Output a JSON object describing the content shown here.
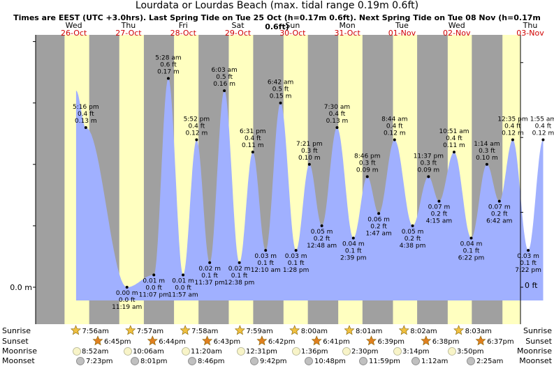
{
  "header": {
    "title": "Lourdata or Lourdas Beach (max. tidal range 0.19m 0.6ft)",
    "subtitle": "Times are EEST (UTC +3.0hrs). Last Spring Tide on Tue 25 Oct (h=0.17m 0.6ft). Next Spring Tide on Tue 08 Nov (h=0.17m 0.6ft)"
  },
  "colors": {
    "day": "#ffffc0",
    "night": "#a0a0a0",
    "tide_fill": "#a0b0ff",
    "date_text": "#d00000"
  },
  "chart_data": {
    "type": "area",
    "y_axis": {
      "left_label": "0.0 m",
      "right_label": "0 ft"
    },
    "days": [
      {
        "dow": "Wed",
        "date": "26-Oct"
      },
      {
        "dow": "Thu",
        "date": "27-Oct"
      },
      {
        "dow": "Fri",
        "date": "28-Oct"
      },
      {
        "dow": "Sat",
        "date": "29-Oct"
      },
      {
        "dow": "Sun",
        "date": "30-Oct"
      },
      {
        "dow": "Mon",
        "date": "31-Oct"
      },
      {
        "dow": "Tue",
        "date": "01-Nov"
      },
      {
        "dow": "Wed",
        "date": "02-Nov"
      },
      {
        "dow": "Thu",
        "date": "03-Nov"
      }
    ],
    "tides": [
      {
        "type": "high",
        "time": "5:16 pm",
        "ft": "0.4 ft",
        "m": "0.13 m"
      },
      {
        "type": "low",
        "time": "11:19 am",
        "ft": "0.0 ft",
        "m": "0.00 m"
      },
      {
        "type": "low",
        "time": "11:07 pm",
        "ft": "0.0 ft",
        "m": "0.01 m"
      },
      {
        "type": "high",
        "time": "5:28 am",
        "ft": "0.6 ft",
        "m": "0.17 m"
      },
      {
        "type": "low",
        "time": "11:57 am",
        "ft": "0.0 ft",
        "m": "0.01 m"
      },
      {
        "type": "high",
        "time": "5:52 pm",
        "ft": "0.4 ft",
        "m": "0.12 m"
      },
      {
        "type": "low",
        "time": "11:37 pm",
        "ft": "0.1 ft",
        "m": "0.02 m"
      },
      {
        "type": "high",
        "time": "6:03 am",
        "ft": "0.5 ft",
        "m": "0.16 m"
      },
      {
        "type": "low",
        "time": "12:38 pm",
        "ft": "0.1 ft",
        "m": "0.02 m"
      },
      {
        "type": "high",
        "time": "6:31 pm",
        "ft": "0.4 ft",
        "m": "0.11 m"
      },
      {
        "type": "low",
        "time": "12:10 am",
        "ft": "0.1 ft",
        "m": "0.03 m"
      },
      {
        "type": "high",
        "time": "6:42 am",
        "ft": "0.5 ft",
        "m": "0.15 m"
      },
      {
        "type": "low",
        "time": "1:28 pm",
        "ft": "0.1 ft",
        "m": "0.03 m"
      },
      {
        "type": "high",
        "time": "7:21 pm",
        "ft": "0.3 ft",
        "m": "0.10 m"
      },
      {
        "type": "low",
        "time": "12:48 am",
        "ft": "0.2 ft",
        "m": "0.05 m"
      },
      {
        "type": "high",
        "time": "7:30 am",
        "ft": "0.4 ft",
        "m": "0.13 m"
      },
      {
        "type": "low",
        "time": "2:39 pm",
        "ft": "0.1 ft",
        "m": "0.04 m"
      },
      {
        "type": "high",
        "time": "8:46 pm",
        "ft": "0.3 ft",
        "m": "0.09 m"
      },
      {
        "type": "low",
        "time": "1:47 am",
        "ft": "0.2 ft",
        "m": "0.06 m"
      },
      {
        "type": "high",
        "time": "8:44 am",
        "ft": "0.4 ft",
        "m": "0.12 m"
      },
      {
        "type": "low",
        "time": "4:38 pm",
        "ft": "0.2 ft",
        "m": "0.05 m"
      },
      {
        "type": "high",
        "time": "11:37 pm",
        "ft": "0.3 ft",
        "m": "0.09 m"
      },
      {
        "type": "low",
        "time": "4:15 am",
        "ft": "0.2 ft",
        "m": "0.07 m"
      },
      {
        "type": "high",
        "time": "10:51 am",
        "ft": "0.4 ft",
        "m": "0.11 m"
      },
      {
        "type": "low",
        "time": "6:22 pm",
        "ft": "0.1 ft",
        "m": "0.04 m"
      },
      {
        "type": "high",
        "time": "1:14 am",
        "ft": "0.3 ft",
        "m": "0.10 m"
      },
      {
        "type": "low",
        "time": "6:42 am",
        "ft": "0.2 ft",
        "m": "0.07 m"
      },
      {
        "type": "high",
        "time": "12:35 pm",
        "ft": "0.4 ft",
        "m": "0.12 m"
      },
      {
        "type": "low",
        "time": "7:22 pm",
        "ft": "0.1 ft",
        "m": "0.03 m"
      },
      {
        "type": "high",
        "time": "1:55 am",
        "ft": "0.4 ft",
        "m": "0.12 m"
      }
    ],
    "row_labels": {
      "sunrise": "Sunrise",
      "sunset": "Sunset",
      "moonrise": "Moonrise",
      "moonset": "Moonset"
    },
    "sunrise": [
      "7:56am",
      "7:57am",
      "7:58am",
      "7:59am",
      "8:00am",
      "8:01am",
      "8:02am",
      "8:03am"
    ],
    "sunset": [
      "6:45pm",
      "6:44pm",
      "6:43pm",
      "6:42pm",
      "6:41pm",
      "6:39pm",
      "6:38pm",
      "6:37pm"
    ],
    "moonrise": [
      "8:52am",
      "10:06am",
      "11:20am",
      "12:31pm",
      "1:36pm",
      "2:30pm",
      "3:14pm",
      "3:50pm"
    ],
    "moonset": [
      "7:23pm",
      "8:01pm",
      "8:46pm",
      "9:42pm",
      "10:48pm",
      "11:59pm",
      "1:12am",
      "2:25am"
    ]
  }
}
